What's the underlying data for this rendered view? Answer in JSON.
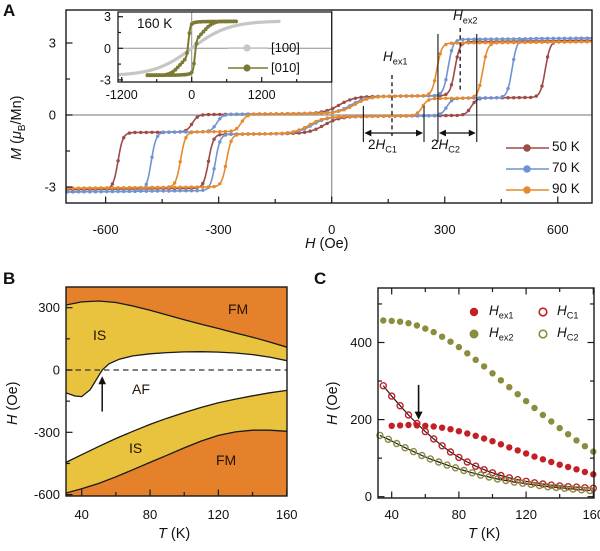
{
  "figure": {
    "panel_labels": [
      "A",
      "B",
      "C"
    ]
  },
  "panelA": {
    "y_title": {
      "var": "M",
      "rest": " (",
      "mu": "μ",
      "sub": "B",
      "rest2": "/Mn)"
    },
    "x_title": {
      "var": "H",
      "rest": " (Oe)"
    },
    "legend": [
      {
        "label": "50 K"
      },
      {
        "label": "70 K"
      },
      {
        "label": "90 K"
      }
    ],
    "annotations": {
      "hex1": {
        "var": "H",
        "sub": "ex1"
      },
      "hex2": {
        "var": "H",
        "sub": "ex2"
      },
      "hc1": {
        "pre": "2",
        "var": "H",
        "sub": "C1"
      },
      "hc2": {
        "pre": "2",
        "var": "H",
        "sub": "C2"
      }
    },
    "inset": {
      "title": "160 K",
      "legend": [
        {
          "label": "[100]"
        },
        {
          "label": "[010]"
        }
      ]
    }
  },
  "panelB": {
    "x_title": {
      "var": "T",
      "rest": " (K)"
    },
    "y_title": {
      "var": "H",
      "rest": " (Oe)"
    },
    "regions": {
      "fm_upper": "FM",
      "is_upper": "IS",
      "af": "AF",
      "is_lower": "IS",
      "fm_lower": "FM"
    }
  },
  "panelC": {
    "x_title": {
      "var": "T",
      "rest": " (K)"
    },
    "y_title": {
      "var": "H",
      "rest": " (Oe)"
    },
    "legend": [
      {
        "var": "H",
        "sub": "ex1"
      },
      {
        "var": "H",
        "sub": "C1"
      },
      {
        "var": "H",
        "sub": "ex2"
      },
      {
        "var": "H",
        "sub": "C2"
      }
    ]
  },
  "chart_data": [
    {
      "id": "A",
      "type": "line",
      "xlabel": "H (Oe)",
      "ylabel": "M (μ_B/Mn)",
      "xlim": [
        -705,
        691
      ],
      "ylim": [
        -3.67,
        4.38
      ],
      "x_ticks_major": [
        -600,
        -300,
        0,
        300,
        600
      ],
      "x_ticks_minor": [
        -450,
        -150,
        150,
        450
      ],
      "y_ticks_major": [
        3,
        0,
        -3
      ],
      "y_ticks_minor": [
        1.5,
        -1.5
      ],
      "legend_position": "lower right",
      "series": [
        {
          "name": "50 K",
          "color": "#9c4b47",
          "M_sat": 3.0,
          "M_plateau_outer": 0.76,
          "M_plateau_inner": 0.65,
          "H_ex1": 185,
          "H_C1": 185,
          "H_ex2": 447,
          "H_C2": 120
        },
        {
          "name": "70 K",
          "color": "#7094d1",
          "M_sat": 3.1,
          "M_plateau_outer": 0.76,
          "M_plateau_inner": 0.65,
          "H_ex1": 185,
          "H_C1": 120,
          "H_ex2": 394,
          "H_C2": 85
        },
        {
          "name": "90 K",
          "color": "#e68a2e",
          "M_sat": 2.95,
          "M_plateau_outer": 0.76,
          "M_plateau_inner": 0.65,
          "H_ex1": 160,
          "H_C1": 80,
          "H_ex2": 340,
          "H_C2": 61
        }
      ],
      "annotations": {
        "H_ex1_line_Oe": 160,
        "H_ex2_line_Oe": 341,
        "twoHC1_span_Oe": [
          84,
          245
        ],
        "twoHC2_span_Oe": [
          282,
          385
        ]
      }
    },
    {
      "id": "A_inset",
      "type": "line",
      "title": "160 K",
      "xlim": [
        -1263,
        2400
      ],
      "ylim": [
        -3.2,
        3.45
      ],
      "x_ticks_major": [
        -1200,
        0,
        1200
      ],
      "x_ticks_minor": [
        -600,
        600,
        1800
      ],
      "y_ticks_major": [
        3,
        0,
        -3
      ],
      "y_ticks_minor": [
        1.5,
        -1.5
      ],
      "series": [
        {
          "name": "[100]",
          "color": "#c6c6c6",
          "M_sat": 2.6,
          "H_scale": 640,
          "H_range": [
            -1260,
            1520
          ]
        },
        {
          "name": "[010]",
          "color": "#7c7a32",
          "M_sat": 2.55,
          "step1_H": 55,
          "step1_w": 30,
          "step2_H": 200,
          "step2_w": 170,
          "H_range": [
            -760,
            760
          ]
        }
      ]
    },
    {
      "id": "B",
      "type": "area",
      "xlabel": "T (K)",
      "ylabel": "H (Oe)",
      "xlim": [
        31,
        161
      ],
      "ylim": [
        -607,
        400
      ],
      "x_ticks_major": [
        40,
        80,
        120,
        160
      ],
      "x_ticks_minor": [
        60,
        100,
        140
      ],
      "y_ticks_major": [
        300,
        0,
        -300,
        -600
      ],
      "y_ticks_minor": [
        150,
        -150,
        -450
      ],
      "colors": {
        "FM": "#e5802b",
        "IS": "#eac33e",
        "AF": "#ffffff"
      },
      "zero_line_dashed": true,
      "arrow": {
        "T": 52,
        "H_from": -200,
        "H_to": -30
      },
      "boundaries": {
        "fm_is_upper": [
          [
            30.8,
            313
          ],
          [
            40,
            328
          ],
          [
            50,
            332
          ],
          [
            60,
            325
          ],
          [
            70,
            308
          ],
          [
            80,
            288
          ],
          [
            90,
            265
          ],
          [
            100,
            242
          ],
          [
            110,
            220
          ],
          [
            120,
            200
          ],
          [
            130,
            178
          ],
          [
            140,
            158
          ],
          [
            150,
            135
          ],
          [
            160.2,
            110
          ]
        ],
        "is_af_upper": [
          [
            30.8,
            -110
          ],
          [
            36,
            -125
          ],
          [
            40,
            -128
          ],
          [
            45,
            -95
          ],
          [
            49,
            -40
          ],
          [
            52,
            0
          ],
          [
            56,
            30
          ],
          [
            62,
            52
          ],
          [
            70,
            68
          ],
          [
            80,
            78
          ],
          [
            90,
            84
          ],
          [
            100,
            87
          ],
          [
            110,
            88
          ],
          [
            120,
            86
          ],
          [
            130,
            82
          ],
          [
            140,
            74
          ],
          [
            150,
            62
          ],
          [
            160.2,
            45
          ]
        ],
        "af_is_lower": [
          [
            30.8,
            -445
          ],
          [
            40,
            -408
          ],
          [
            50,
            -368
          ],
          [
            60,
            -330
          ],
          [
            70,
            -295
          ],
          [
            80,
            -262
          ],
          [
            90,
            -232
          ],
          [
            100,
            -205
          ],
          [
            110,
            -180
          ],
          [
            120,
            -158
          ],
          [
            130,
            -140
          ],
          [
            140,
            -124
          ],
          [
            150,
            -110
          ],
          [
            160.2,
            -98
          ]
        ],
        "is_fm_lower": [
          [
            30.8,
            -592
          ],
          [
            40,
            -572
          ],
          [
            50,
            -546
          ],
          [
            60,
            -514
          ],
          [
            70,
            -480
          ],
          [
            80,
            -445
          ],
          [
            90,
            -410
          ],
          [
            100,
            -375
          ],
          [
            110,
            -342
          ],
          [
            120,
            -315
          ],
          [
            130,
            -298
          ],
          [
            140,
            -290
          ],
          [
            150,
            -290
          ],
          [
            160.2,
            -295
          ]
        ]
      }
    },
    {
      "id": "C",
      "type": "scatter",
      "xlabel": "T (K)",
      "ylabel": "H (Oe)",
      "xlim": [
        32,
        160
      ],
      "ylim": [
        -5,
        541
      ],
      "x_ticks_major": [
        40,
        80,
        120,
        160
      ],
      "x_ticks_minor": [
        60,
        100,
        140
      ],
      "y_ticks_major": [
        0,
        200,
        400
      ],
      "y_ticks_minor": [
        100,
        300,
        500
      ],
      "arrow": {
        "T": 56,
        "H_from": 290,
        "H_to": 200
      },
      "series": [
        {
          "name": "H_ex2",
          "marker": "filled",
          "color": "#8b8c3e",
          "fit_line": false,
          "T": [
            35,
            40,
            45,
            50,
            55,
            60,
            65,
            70,
            75,
            80,
            85,
            90,
            95,
            100,
            105,
            110,
            115,
            120,
            125,
            130,
            135,
            140,
            145,
            150,
            155,
            160
          ],
          "H": [
            457,
            456,
            454,
            450,
            444,
            436,
            427,
            415,
            402,
            388,
            372,
            355,
            338,
            320,
            302,
            284,
            266,
            248,
            230,
            212,
            195,
            178,
            162,
            146,
            131,
            117
          ]
        },
        {
          "name": "H_ex1",
          "marker": "filled",
          "color": "#c32026",
          "fit_line": false,
          "T": [
            40,
            45,
            50,
            55,
            60,
            65,
            70,
            75,
            80,
            85,
            90,
            95,
            100,
            105,
            110,
            115,
            120,
            125,
            130,
            135,
            140,
            145,
            150,
            155,
            160
          ],
          "H": [
            184,
            185,
            186,
            185,
            184,
            182,
            179,
            175,
            170,
            164,
            158,
            151,
            144,
            136,
            128,
            120,
            112,
            104,
            97,
            90,
            83,
            77,
            71,
            64,
            58
          ]
        },
        {
          "name": "H_C1",
          "marker": "open",
          "color": "#c32026",
          "fit_line": true,
          "T": [
            35,
            40,
            45,
            50,
            55,
            60,
            65,
            70,
            75,
            80,
            85,
            90,
            95,
            100,
            105,
            110,
            115,
            120,
            125,
            130,
            135,
            140,
            145,
            150,
            155,
            160
          ],
          "H": [
            288,
            261,
            236,
            212,
            190,
            169,
            150,
            132,
            116,
            102,
            90,
            79,
            70,
            62,
            55,
            49,
            44,
            40,
            36,
            33,
            30,
            28,
            26,
            25,
            23,
            22
          ]
        },
        {
          "name": "H_C2",
          "marker": "open",
          "color": "#8b8c3e",
          "fit_line": true,
          "T": [
            33,
            38,
            43,
            48,
            53,
            58,
            63,
            68,
            73,
            78,
            83,
            88,
            93,
            98,
            103,
            108,
            113,
            118,
            123,
            128,
            133,
            138,
            143,
            148,
            153,
            158
          ],
          "H": [
            159,
            149,
            138,
            127,
            117,
            107,
            98,
            90,
            82,
            75,
            68,
            62,
            56,
            51,
            46,
            42,
            38,
            35,
            32,
            29,
            26,
            24,
            22,
            20,
            18,
            16
          ]
        }
      ]
    }
  ]
}
